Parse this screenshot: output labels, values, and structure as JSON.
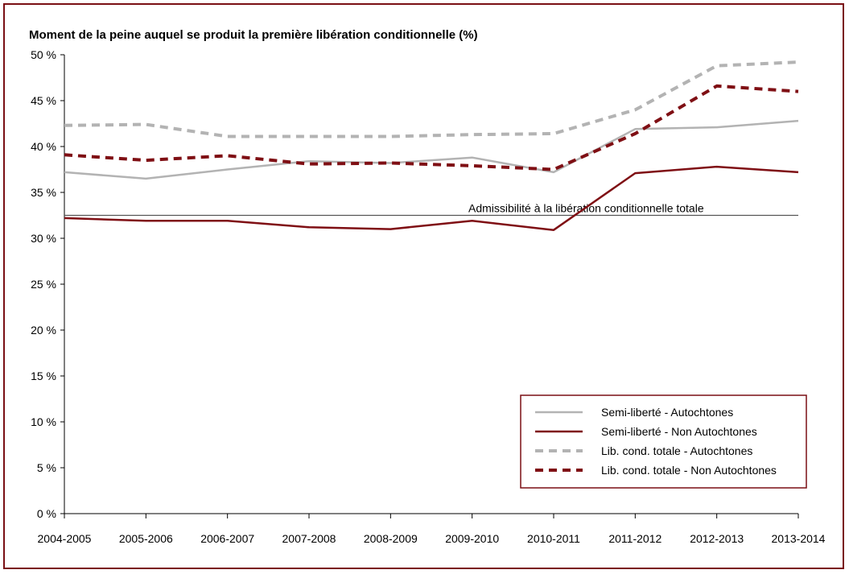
{
  "chart_data": {
    "type": "line",
    "title": "",
    "ylabel": "Moment de la peine auquel se produit la première libération conditionnelle (%)",
    "xlabel": "",
    "categories": [
      "2004-2005",
      "2005-2006",
      "2006-2007",
      "2007-2008",
      "2008-2009",
      "2009-2010",
      "2010-2011",
      "2011-2012",
      "2012-2013",
      "2013-2014"
    ],
    "ylim": [
      0,
      50
    ],
    "yticks": [
      0,
      5,
      10,
      15,
      20,
      25,
      30,
      35,
      40,
      45,
      50
    ],
    "ytick_suffix": " %",
    "grid": false,
    "legend_position": "bottom-right",
    "series": [
      {
        "name": "Semi-liberté - Autochtones",
        "color": "#b3b3b3",
        "dash": false,
        "values": [
          37.2,
          36.5,
          37.5,
          38.4,
          38.2,
          38.8,
          37.2,
          41.9,
          42.1,
          42.8
        ]
      },
      {
        "name": "Semi-liberté - Non Autochtones",
        "color": "#7f0f14",
        "dash": false,
        "values": [
          32.2,
          31.9,
          31.9,
          31.2,
          31.0,
          31.9,
          30.9,
          37.1,
          37.8,
          37.2
        ]
      },
      {
        "name": "Lib. cond. totale - Autochtones",
        "color": "#b3b3b3",
        "dash": true,
        "values": [
          42.3,
          42.4,
          41.1,
          41.1,
          41.1,
          41.3,
          41.4,
          44.0,
          48.8,
          49.2
        ]
      },
      {
        "name": "Lib. cond. totale - Non Autochtones",
        "color": "#7f0f14",
        "dash": true,
        "values": [
          39.1,
          38.5,
          39.0,
          38.1,
          38.2,
          37.9,
          37.5,
          41.4,
          46.6,
          46.0
        ]
      }
    ],
    "reference_line": {
      "label": "Admissibilité à la libération conditionnelle totale",
      "value": 32.5,
      "color": "#555555"
    }
  }
}
